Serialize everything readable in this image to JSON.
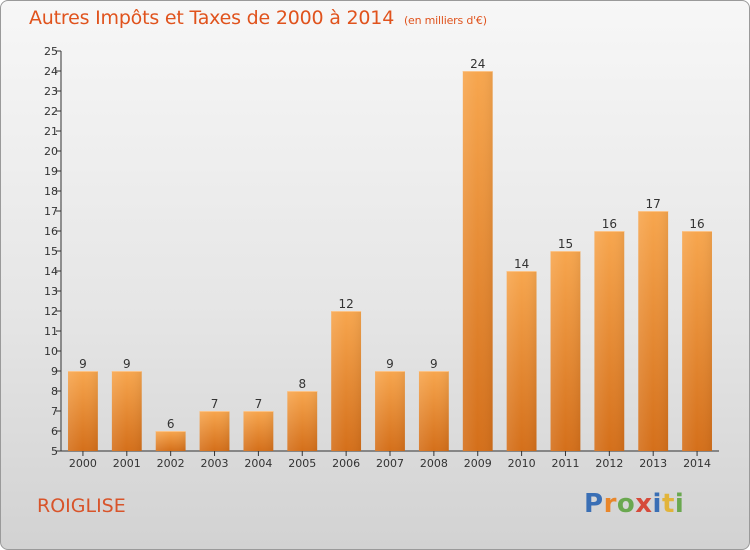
{
  "header": {
    "title": "Autres Impôts et Taxes de 2000 à 2014",
    "subtitle": "(en milliers d'€)"
  },
  "footer": {
    "commune": "ROIGLISE",
    "logo_letters": [
      "P",
      "r",
      "o",
      "x",
      "i",
      "t",
      "i"
    ]
  },
  "colors": {
    "title": "#e0531d",
    "bar_top": "#f7a64e",
    "bar_bottom": "#d46f1a",
    "axis": "#333333",
    "gridline": "#cfcfcf"
  },
  "chart_data": {
    "type": "bar",
    "title": "Autres Impôts et Taxes de 2000 à 2014",
    "subtitle": "(en milliers d'€)",
    "xlabel": "",
    "ylabel": "",
    "categories": [
      "2000",
      "2001",
      "2002",
      "2003",
      "2004",
      "2005",
      "2006",
      "2007",
      "2008",
      "2009",
      "2010",
      "2011",
      "2012",
      "2013",
      "2014"
    ],
    "values": [
      9,
      9,
      6,
      7,
      7,
      8,
      12,
      9,
      9,
      24,
      14,
      15,
      16,
      17,
      16
    ],
    "ylim": [
      5,
      25
    ],
    "yticks": [
      "5",
      "6",
      "7",
      "8",
      "9",
      "10",
      "11",
      "12",
      "13",
      "14",
      "15",
      "16",
      "17",
      "18",
      "19",
      "20",
      "21",
      "22",
      "23",
      "24",
      "25"
    ],
    "data_labels": [
      "9",
      "9",
      "6",
      "7",
      "7",
      "8",
      "12",
      "9",
      "9",
      "24",
      "14",
      "15",
      "16",
      "17",
      "16"
    ],
    "grid": false
  }
}
